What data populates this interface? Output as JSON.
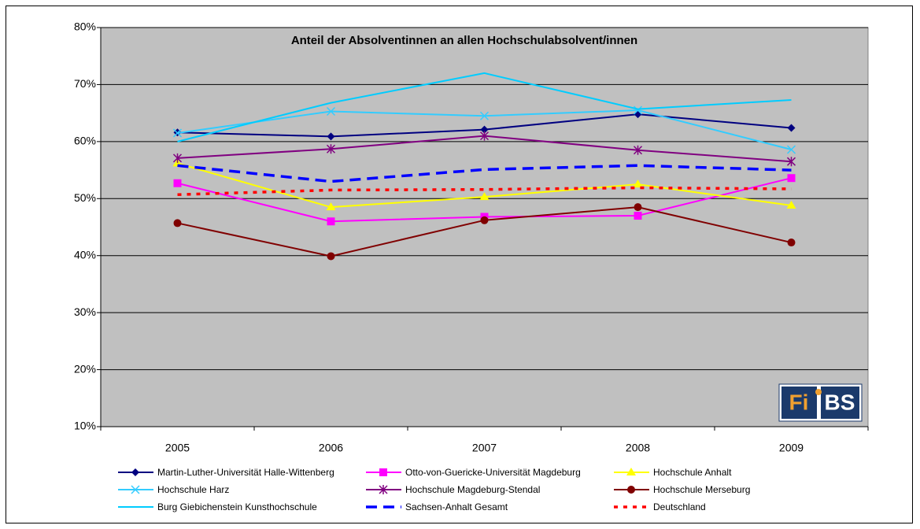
{
  "chart_data": {
    "type": "line",
    "title": "Anteil der Absolventinnen an allen Hochschulabsolvent/innen",
    "categories": [
      "2005",
      "2006",
      "2007",
      "2008",
      "2009"
    ],
    "ylim": [
      10,
      80
    ],
    "yticks": [
      {
        "value": 10,
        "label": "10%"
      },
      {
        "value": 20,
        "label": "20%"
      },
      {
        "value": 30,
        "label": "30%"
      },
      {
        "value": 40,
        "label": "40%"
      },
      {
        "value": 50,
        "label": "50%"
      },
      {
        "value": 60,
        "label": "60%"
      },
      {
        "value": 70,
        "label": "70%"
      },
      {
        "value": 80,
        "label": "80%"
      }
    ],
    "grid": true,
    "legend": "bottom",
    "series": [
      {
        "name": "Martin-Luther-Universität Halle-Wittenberg",
        "color": "#000080",
        "marker": "diamond",
        "values": [
          61.6,
          60.9,
          62.1,
          64.8,
          62.4
        ]
      },
      {
        "name": "Otto-von-Guericke-Universität Magdeburg",
        "color": "#ff00ff",
        "marker": "square",
        "values": [
          52.7,
          46.0,
          46.8,
          47.0,
          53.6
        ]
      },
      {
        "name": "Hochschule Anhalt",
        "color": "#ffff00",
        "marker": "triangle",
        "values": [
          56.2,
          48.5,
          50.3,
          52.5,
          48.8
        ]
      },
      {
        "name": "Hochschule Harz",
        "color": "#33ccff",
        "marker": "x",
        "values": [
          61.5,
          65.3,
          64.5,
          65.5,
          58.6
        ]
      },
      {
        "name": "Hochschule Magdeburg-Stendal",
        "color": "#800080",
        "marker": "star",
        "values": [
          57.1,
          58.7,
          61.0,
          58.5,
          56.5
        ]
      },
      {
        "name": "Hochschule Merseburg",
        "color": "#800000",
        "marker": "circle",
        "values": [
          45.7,
          39.9,
          46.2,
          48.5,
          42.3
        ]
      },
      {
        "name": "Burg Giebichenstein Kunsthochschule",
        "color": "#00ccff",
        "marker": "none",
        "values": [
          60.0,
          66.8,
          72.0,
          65.7,
          67.3
        ]
      },
      {
        "name": "Sachsen-Anhalt Gesamt",
        "color": "#0000ff",
        "marker": "none",
        "dash": "long",
        "values": [
          55.8,
          53.0,
          55.1,
          55.8,
          55.0
        ]
      },
      {
        "name": "Deutschland",
        "color": "#ff0000",
        "marker": "none",
        "dash": "short",
        "values": [
          50.7,
          51.5,
          51.6,
          51.9,
          51.7
        ]
      }
    ]
  },
  "logo": {
    "left": "Fi",
    "right": "BS"
  }
}
